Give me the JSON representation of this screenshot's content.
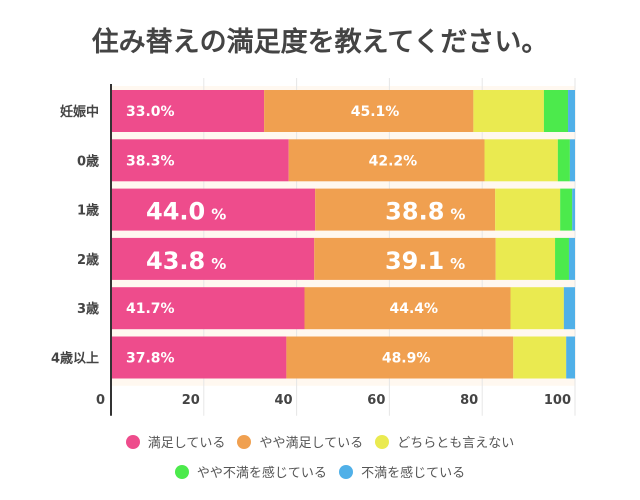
{
  "chart_data": {
    "type": "bar",
    "orientation": "horizontal",
    "stacked": true,
    "title": "住み替えの満足度を教えてください。",
    "xlabel": "",
    "ylabel": "",
    "xlim": [
      0,
      100
    ],
    "x_ticks": [
      "0",
      "20",
      "40",
      "60",
      "80",
      "100"
    ],
    "grid": true,
    "legend_position": "bottom",
    "categories": [
      "妊娠中",
      "0歳",
      "1歳",
      "2歳",
      "3歳",
      "4歳以上"
    ],
    "series": [
      {
        "name": "満足している",
        "color": "#ee4c8c",
        "values": [
          33.0,
          38.3,
          44.0,
          43.8,
          41.7,
          37.8
        ]
      },
      {
        "name": "やや満足している",
        "color": "#f0a050",
        "values": [
          45.1,
          42.2,
          38.8,
          39.1,
          44.4,
          48.9
        ]
      },
      {
        "name": "どちらとも言えない",
        "color": "#eaea50",
        "values": [
          15.2,
          15.8,
          14.0,
          12.8,
          11.5,
          11.4
        ]
      },
      {
        "name": "やや不満を感じている",
        "color": "#4cea4c",
        "values": [
          5.2,
          2.6,
          2.6,
          3.0,
          0,
          0
        ]
      },
      {
        "name": "不満を感じている",
        "color": "#50b0e8",
        "values": [
          1.5,
          1.1,
          0.6,
          1.3,
          2.4,
          1.9
        ]
      }
    ],
    "data_labels": [
      {
        "series": 0,
        "labels": [
          "33.0%",
          "38.3%",
          "44.0",
          "43.8",
          "41.7%",
          "37.8%"
        ]
      },
      {
        "series": 1,
        "labels": [
          "45.1%",
          "42.2%",
          "38.8",
          "39.1",
          "44.4%",
          "48.9%"
        ]
      }
    ],
    "large_label_rows": [
      2,
      3
    ],
    "percent_suffix": "%"
  }
}
